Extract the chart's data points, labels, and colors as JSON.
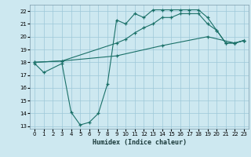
{
  "xlabel": "Humidex (Indice chaleur)",
  "bg_color": "#cde8f0",
  "grid_color": "#9dc8d8",
  "line_color": "#1a7068",
  "xlim": [
    -0.5,
    23.5
  ],
  "ylim": [
    12.8,
    22.5
  ],
  "yticks": [
    13,
    14,
    15,
    16,
    17,
    18,
    19,
    20,
    21,
    22
  ],
  "xticks": [
    0,
    1,
    2,
    3,
    4,
    5,
    6,
    7,
    8,
    9,
    10,
    11,
    12,
    13,
    14,
    15,
    16,
    17,
    18,
    19,
    20,
    21,
    22,
    23
  ],
  "curve1_x": [
    0,
    1,
    3,
    4,
    5,
    6,
    7,
    8,
    9,
    10,
    11,
    12,
    13,
    14,
    15,
    16,
    17,
    18,
    19,
    20,
    21,
    22,
    23
  ],
  "curve1_y": [
    17.9,
    17.2,
    17.9,
    14.1,
    13.1,
    13.3,
    14.0,
    16.3,
    21.3,
    21.0,
    21.8,
    21.5,
    22.1,
    22.1,
    22.1,
    22.1,
    22.1,
    22.1,
    21.5,
    20.5,
    19.5,
    19.5,
    19.7
  ],
  "curve2_x": [
    0,
    3,
    9,
    10,
    11,
    12,
    13,
    14,
    15,
    16,
    17,
    18,
    19,
    20,
    21,
    22,
    23
  ],
  "curve2_y": [
    18.0,
    18.1,
    19.5,
    19.8,
    20.3,
    20.7,
    21.0,
    21.5,
    21.5,
    21.8,
    21.8,
    21.8,
    21.0,
    20.5,
    19.5,
    19.5,
    19.7
  ],
  "curve3_x": [
    0,
    3,
    9,
    14,
    19,
    22,
    23
  ],
  "curve3_y": [
    18.0,
    18.1,
    18.5,
    19.3,
    20.0,
    19.5,
    19.7
  ]
}
